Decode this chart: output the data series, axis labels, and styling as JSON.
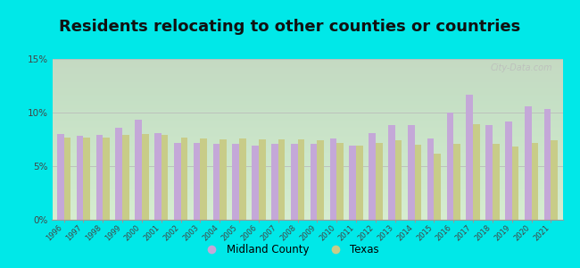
{
  "title": "Residents relocating to other counties or countries",
  "years": [
    1996,
    1997,
    1998,
    1999,
    2000,
    2001,
    2002,
    2003,
    2004,
    2005,
    2006,
    2007,
    2008,
    2009,
    2010,
    2011,
    2012,
    2013,
    2014,
    2015,
    2016,
    2017,
    2018,
    2019,
    2020,
    2021
  ],
  "midland": [
    8.0,
    7.8,
    7.9,
    8.6,
    9.3,
    8.1,
    7.2,
    7.2,
    7.1,
    7.1,
    6.9,
    7.1,
    7.1,
    7.1,
    7.6,
    6.9,
    8.1,
    8.8,
    8.8,
    7.6,
    10.0,
    11.7,
    8.8,
    9.2,
    10.6,
    10.3
  ],
  "texas": [
    7.7,
    7.7,
    7.7,
    7.9,
    8.0,
    7.9,
    7.7,
    7.6,
    7.5,
    7.6,
    7.5,
    7.5,
    7.5,
    7.4,
    7.2,
    6.9,
    7.2,
    7.4,
    7.0,
    6.2,
    7.1,
    8.9,
    7.1,
    6.8,
    7.2,
    7.4
  ],
  "midland_color": "#c4a8d8",
  "texas_color": "#c8cc88",
  "background_outer": "#00e8e8",
  "background_plot_top": "#f0faf0",
  "background_plot_bottom": "#d8eec8",
  "ylim": [
    0,
    15
  ],
  "yticks": [
    0,
    5,
    10,
    15
  ],
  "ytick_labels": [
    "0%",
    "5%",
    "10%",
    "15%"
  ],
  "watermark": "City-Data.com",
  "legend_midland": "Midland County",
  "legend_texas": "Texas",
  "title_fontsize": 13,
  "title_bold": true
}
